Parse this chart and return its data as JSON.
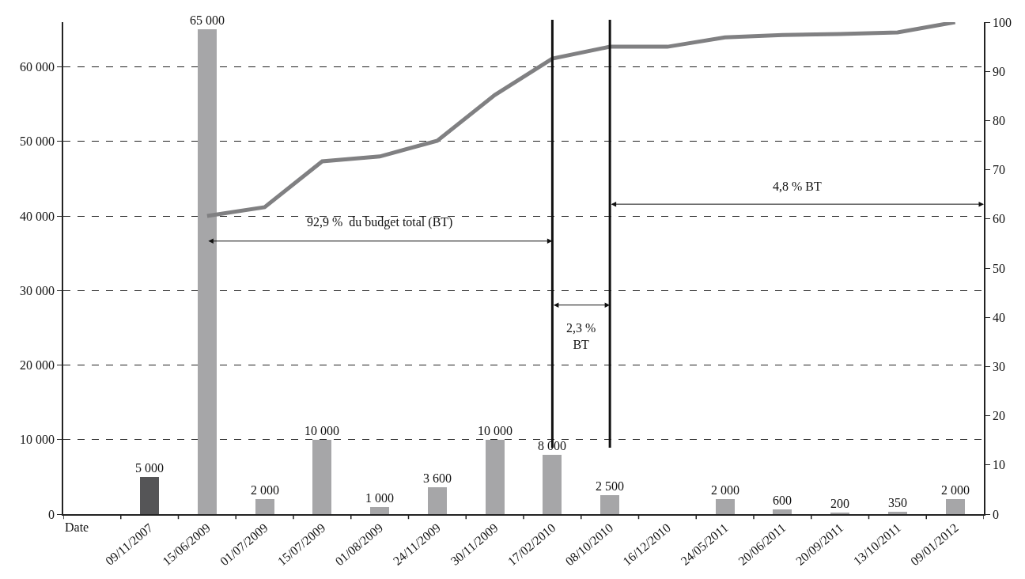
{
  "chart_data": {
    "type": "bar",
    "xlabel": "Date",
    "categories": [
      null,
      "09/11/2007",
      "15/06/2009",
      "01/07/2009",
      "15/07/2009",
      "01/08/2009",
      "24/11/2009",
      "30/11/2009",
      "17/02/2010",
      "08/10/2010",
      "16/12/2010",
      "24/05/2011",
      "20/06/2011",
      "20/09/2011",
      "13/10/2011",
      "09/01/2012"
    ],
    "series": [
      {
        "colors": [
          "#a6a6a8",
          "#555557",
          "#a6a6a8",
          "#a6a6a8",
          "#a6a6a8",
          "#a6a6a8",
          "#a6a6a8",
          "#a6a6a8",
          "#a6a6a8",
          "#a6a6a8",
          "#a6a6a8",
          "#a6a6a8",
          "#a6a6a8",
          "#a6a6a8",
          "#a6a6a8",
          "#a6a6a8"
        ],
        "values": [
          null,
          5000,
          65000,
          2000,
          10000,
          1000,
          3600,
          10000,
          8000,
          2500,
          null,
          2000,
          600,
          200,
          350,
          2000
        ],
        "value_labels": [
          null,
          "5 000",
          "65 000",
          "2 000",
          "10 000",
          "1 000",
          "3 600",
          "10 000",
          "8 000",
          "2 500",
          null,
          "2 000",
          "600",
          "200",
          "350",
          "2 000"
        ]
      },
      {
        "type": "line",
        "axis": "y2",
        "color": "#808082",
        "values": [
          null,
          null,
          60.6,
          62.4,
          71.7,
          72.7,
          75.9,
          85.2,
          92.6,
          95.0,
          95.0,
          96.9,
          97.4,
          97.6,
          97.9,
          100
        ]
      }
    ],
    "ylim": [
      0,
      66000
    ],
    "yticks": [
      0,
      {
        "value": 10000,
        "label": "10 000"
      },
      {
        "value": 20000,
        "label": "20 000"
      },
      {
        "value": 30000,
        "label": "30 000"
      },
      {
        "value": 40000,
        "label": "40 000"
      },
      {
        "value": 50000,
        "label": "50 000"
      },
      {
        "value": 60000,
        "label": "60 000"
      }
    ],
    "y2lim": [
      0,
      100
    ],
    "y2ticks": [
      0,
      10,
      20,
      30,
      40,
      50,
      60,
      70,
      80,
      90,
      100
    ],
    "ref_lines": [
      {
        "axis": "x",
        "value": "17/02/2010",
        "color": "#111111"
      },
      {
        "axis": "x",
        "value": "08/10/2010",
        "color": "#111111"
      }
    ],
    "annotations": [
      "92,9 %  du budget total (BT)",
      "2,3 %\nBT",
      "4,8 % BT"
    ],
    "grid": "y",
    "line_style": "solid",
    "marker": "none"
  }
}
